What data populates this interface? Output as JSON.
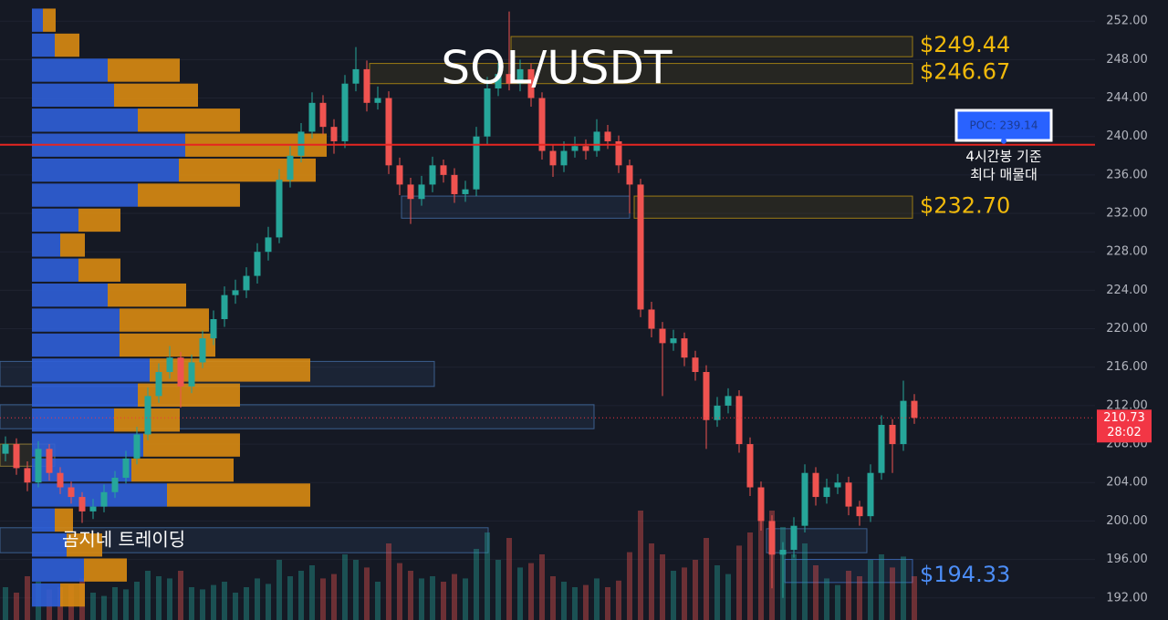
{
  "chart_data": {
    "type": "candlestick",
    "title": "SOL/USDT",
    "ylim": [
      189.7,
      254.2
    ],
    "yticks": [
      {
        "value": 192,
        "label": "192.00"
      },
      {
        "value": 196,
        "label": "196.00"
      },
      {
        "value": 200,
        "label": "200.00"
      },
      {
        "value": 204,
        "label": "204.00"
      },
      {
        "value": 208,
        "label": "208.00"
      },
      {
        "value": 212,
        "label": "212.00"
      },
      {
        "value": 216,
        "label": "216.00"
      },
      {
        "value": 220,
        "label": "220.00"
      },
      {
        "value": 224,
        "label": "224.00"
      },
      {
        "value": 228,
        "label": "228.00"
      },
      {
        "value": 232,
        "label": "232.00"
      },
      {
        "value": 236,
        "label": "236.00"
      },
      {
        "value": 240,
        "label": "240.00"
      },
      {
        "value": 244,
        "label": "244.00"
      },
      {
        "value": 248,
        "label": "248.00"
      },
      {
        "value": 252,
        "label": "252.00"
      }
    ],
    "grid": true,
    "up_color": "#26a69a",
    "down_color": "#ef5350",
    "ohlc": [
      [
        207.0,
        208.8,
        206.2,
        208.0
      ],
      [
        208.0,
        208.6,
        204.8,
        205.5
      ],
      [
        205.5,
        206.2,
        203.1,
        204.0
      ],
      [
        204.0,
        208.3,
        203.5,
        207.5
      ],
      [
        207.5,
        208.0,
        204.2,
        205.0
      ],
      [
        205.0,
        205.6,
        202.8,
        203.5
      ],
      [
        203.5,
        204.1,
        201.8,
        202.5
      ],
      [
        202.5,
        203.0,
        199.8,
        201.0
      ],
      [
        201.0,
        202.3,
        200.2,
        201.5
      ],
      [
        201.5,
        203.8,
        200.9,
        203.0
      ],
      [
        203.0,
        205.2,
        202.4,
        204.5
      ],
      [
        204.5,
        207.3,
        203.9,
        206.5
      ],
      [
        206.5,
        209.8,
        205.9,
        209.0
      ],
      [
        209.0,
        213.9,
        208.4,
        213.0
      ],
      [
        213.0,
        216.4,
        212.3,
        215.5
      ],
      [
        215.5,
        218.2,
        214.8,
        217.0
      ],
      [
        217.0,
        217.6,
        211.8,
        214.0
      ],
      [
        214.0,
        217.3,
        213.3,
        216.5
      ],
      [
        216.5,
        219.8,
        215.9,
        219.0
      ],
      [
        219.0,
        221.9,
        218.3,
        221.0
      ],
      [
        221.0,
        224.4,
        220.2,
        223.5
      ],
      [
        223.5,
        225.1,
        222.6,
        224.0
      ],
      [
        224.0,
        226.4,
        223.2,
        225.5
      ],
      [
        225.5,
        228.9,
        224.7,
        228.0
      ],
      [
        228.0,
        230.6,
        227.1,
        229.5
      ],
      [
        229.5,
        236.6,
        228.9,
        235.5
      ],
      [
        235.5,
        239.0,
        234.7,
        238.0
      ],
      [
        238.0,
        241.4,
        237.3,
        240.5
      ],
      [
        240.5,
        244.6,
        239.8,
        243.5
      ],
      [
        243.5,
        244.3,
        240.2,
        241.0
      ],
      [
        241.0,
        241.8,
        238.2,
        239.5
      ],
      [
        239.5,
        246.4,
        238.8,
        245.5
      ],
      [
        245.5,
        249.3,
        244.7,
        247.0
      ],
      [
        247.0,
        247.9,
        242.6,
        243.5
      ],
      [
        243.5,
        245.2,
        242.8,
        244.0
      ],
      [
        244.0,
        244.7,
        236.1,
        237.0
      ],
      [
        237.0,
        237.8,
        233.9,
        235.0
      ],
      [
        235.0,
        235.7,
        230.9,
        233.5
      ],
      [
        233.5,
        235.9,
        232.8,
        235.0
      ],
      [
        235.0,
        237.9,
        234.2,
        237.0
      ],
      [
        237.0,
        237.6,
        235.2,
        236.0
      ],
      [
        236.0,
        236.7,
        233.1,
        234.0
      ],
      [
        234.0,
        235.4,
        233.2,
        234.5
      ],
      [
        234.5,
        241.0,
        233.8,
        240.0
      ],
      [
        240.0,
        246.2,
        239.2,
        245.0
      ],
      [
        245.0,
        247.7,
        244.2,
        246.5
      ],
      [
        246.5,
        253.0,
        244.8,
        245.5
      ],
      [
        245.5,
        248.0,
        244.7,
        247.0
      ],
      [
        247.0,
        247.6,
        243.1,
        244.0
      ],
      [
        244.0,
        244.6,
        237.6,
        238.5
      ],
      [
        238.5,
        239.2,
        235.8,
        237.0
      ],
      [
        237.0,
        239.5,
        236.3,
        238.5
      ],
      [
        238.5,
        240.0,
        237.8,
        239.0
      ],
      [
        239.0,
        239.7,
        237.6,
        238.5
      ],
      [
        238.5,
        241.8,
        237.9,
        240.5
      ],
      [
        240.5,
        241.2,
        238.7,
        239.5
      ],
      [
        239.5,
        240.1,
        236.2,
        237.0
      ],
      [
        237.0,
        237.6,
        232.0,
        235.0
      ],
      [
        235.0,
        235.6,
        221.2,
        222.0
      ],
      [
        222.0,
        222.8,
        219.1,
        220.0
      ],
      [
        220.0,
        220.7,
        213.0,
        218.5
      ],
      [
        218.5,
        219.9,
        217.7,
        219.0
      ],
      [
        219.0,
        219.6,
        216.1,
        217.0
      ],
      [
        217.0,
        217.7,
        214.6,
        215.5
      ],
      [
        215.5,
        216.2,
        207.5,
        210.5
      ],
      [
        210.5,
        212.9,
        209.8,
        212.0
      ],
      [
        212.0,
        213.8,
        211.2,
        213.0
      ],
      [
        213.0,
        213.6,
        207.1,
        208.0
      ],
      [
        208.0,
        208.7,
        202.6,
        203.5
      ],
      [
        203.5,
        204.1,
        199.0,
        200.0
      ],
      [
        200.0,
        200.6,
        193.0,
        196.5
      ],
      [
        196.5,
        197.8,
        192.0,
        197.0
      ],
      [
        197.0,
        200.4,
        196.2,
        199.5
      ],
      [
        199.5,
        205.9,
        198.8,
        205.0
      ],
      [
        205.0,
        205.6,
        201.6,
        202.5
      ],
      [
        202.5,
        204.4,
        201.8,
        203.5
      ],
      [
        203.5,
        204.9,
        202.8,
        204.0
      ],
      [
        204.0,
        204.6,
        200.6,
        201.5
      ],
      [
        201.5,
        202.1,
        199.5,
        200.5
      ],
      [
        200.5,
        205.9,
        199.9,
        205.0
      ],
      [
        205.0,
        211.0,
        204.3,
        210.0
      ],
      [
        210.0,
        210.6,
        205.0,
        208.0
      ],
      [
        208.0,
        214.6,
        207.3,
        212.5
      ],
      [
        212.5,
        213.2,
        210.1,
        210.73
      ]
    ],
    "volume": [
      30,
      25,
      40,
      35,
      28,
      30,
      32,
      38,
      25,
      22,
      30,
      28,
      35,
      45,
      40,
      38,
      45,
      30,
      28,
      32,
      35,
      25,
      30,
      38,
      33,
      55,
      40,
      45,
      50,
      38,
      42,
      60,
      55,
      48,
      35,
      70,
      52,
      45,
      38,
      40,
      35,
      42,
      38,
      65,
      80,
      55,
      75,
      48,
      52,
      60,
      40,
      35,
      30,
      32,
      38,
      30,
      36,
      62,
      100,
      70,
      60,
      45,
      48,
      55,
      75,
      50,
      42,
      68,
      80,
      95,
      100,
      85,
      60,
      70,
      50,
      38,
      32,
      45,
      40,
      55,
      60,
      48,
      58,
      40
    ],
    "volume_profile": {
      "bins": [
        253.4,
        250.8,
        248.2,
        245.6,
        243.0,
        240.4,
        237.8,
        235.2,
        232.6,
        230.0,
        227.4,
        224.8,
        222.2,
        219.6,
        217.0,
        214.4,
        211.8,
        209.2,
        206.6,
        204.0,
        201.4,
        198.8,
        196.2,
        193.6,
        191.0
      ],
      "buy": [
        12,
        25,
        83,
        90,
        116,
        168,
        161,
        116,
        51,
        31,
        51,
        83,
        96,
        96,
        129,
        116,
        90,
        122,
        109,
        148,
        25,
        38,
        57,
        31
      ],
      "sell": [
        14,
        27,
        79,
        92,
        112,
        155,
        150,
        112,
        46,
        27,
        46,
        86,
        98,
        105,
        176,
        112,
        72,
        106,
        112,
        157,
        20,
        39,
        47,
        27
      ],
      "buy_color": "#2f5fd8",
      "sell_color": "#d98b12"
    },
    "levels": [
      {
        "value": 249.44,
        "label": "$249.44",
        "range": [
          248.3,
          250.4
        ],
        "color": "#f0b90b"
      },
      {
        "value": 246.67,
        "label": "$246.67",
        "range": [
          245.5,
          247.6
        ],
        "color": "#f0b90b"
      },
      {
        "value": 232.7,
        "label": "$232.70",
        "range": [
          231.5,
          233.8
        ],
        "color": "#f0b90b"
      },
      {
        "value": 194.33,
        "label": "$194.33",
        "range": [
          193.6,
          196.0
        ],
        "color": "#4c8df6"
      }
    ],
    "zones": [
      {
        "range": [
          214.0,
          216.6
        ],
        "color": "#4a7bb7"
      },
      {
        "range": [
          209.6,
          212.1
        ],
        "color": "#4a7bb7"
      },
      {
        "range": [
          205.7,
          208.0
        ],
        "color": "#b59a3a"
      },
      {
        "range": [
          196.7,
          199.3
        ],
        "color": "#4a7bb7"
      },
      {
        "range": [
          196.7,
          199.2
        ],
        "color": "#4a7bb7"
      },
      {
        "range": [
          231.5,
          233.8
        ],
        "color": "#4a7bb7"
      }
    ],
    "poc": {
      "value": 239.14,
      "label": "POC: 239.14",
      "note": [
        "4시간봉 기준",
        "최다 매물대"
      ],
      "color": "#e52521"
    },
    "last_price": {
      "value": 210.73,
      "label": "210.73",
      "timer": "28:02",
      "color": "#f23645"
    },
    "watermark": "곰지네 트레이딩"
  }
}
